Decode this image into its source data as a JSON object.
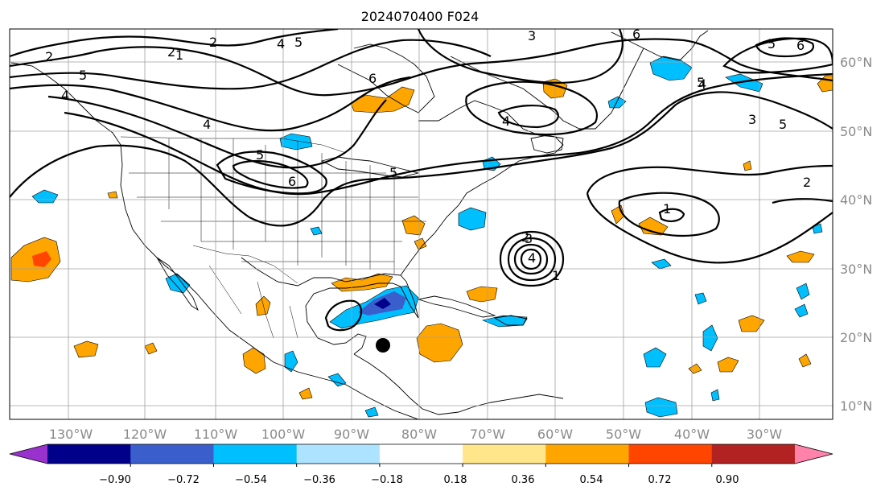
{
  "title": "2024070400 F024",
  "map": {
    "lon_labels": [
      "130°W",
      "120°W",
      "110°W",
      "100°W",
      "90°W",
      "80°W",
      "70°W",
      "60°W",
      "50°W",
      "40°W",
      "30°W"
    ],
    "lat_labels": [
      "60°N",
      "50°N",
      "40°N",
      "30°N",
      "20°N",
      "10°N"
    ],
    "contour_labels": [
      "2",
      "1",
      "2",
      "5",
      "4",
      "5",
      "6",
      "5",
      "4",
      "4",
      "3",
      "6",
      "6",
      "5",
      "5",
      "3",
      "5",
      "6",
      "4",
      "3",
      "2",
      "5",
      "4",
      "2",
      "1",
      "1",
      "2",
      "4"
    ]
  },
  "colorbar": {
    "ticks": [
      "−0.90",
      "−0.72",
      "−0.54",
      "−0.36",
      "−0.18",
      "0.18",
      "0.36",
      "0.54",
      "0.72",
      "0.90"
    ],
    "colors": [
      "#9932cc",
      "#00008b",
      "#3a5fcd",
      "#00bfff",
      "#aee3ff",
      "#ffffff",
      "#ffe68a",
      "#ffa500",
      "#ff4500",
      "#b22222",
      "#ff82ab"
    ]
  },
  "colors": {
    "orange": "#ffa500",
    "red_orange": "#ff4500",
    "light_blue": "#00bfff",
    "blue": "#3a5fcd",
    "navy": "#00008b",
    "grid": "#a0a0a0"
  },
  "storm_marker": "filled black circle"
}
